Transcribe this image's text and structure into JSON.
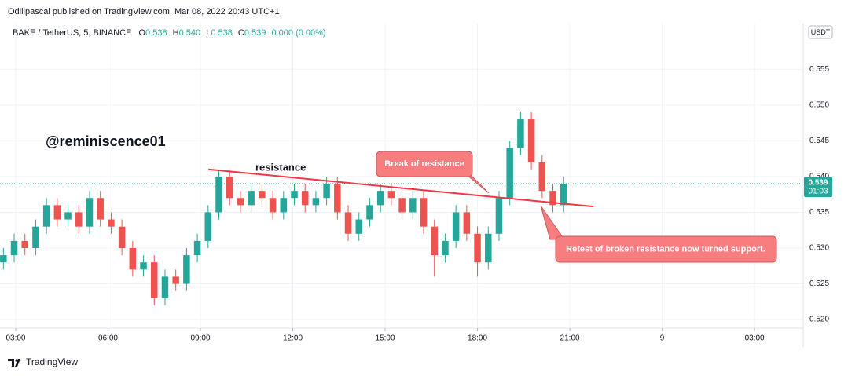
{
  "header": {
    "published": "Odilipascal published on TradingView.com, Mar 08, 2022 20:43 UTC+1",
    "symbol": "BAKE / TetherUS, 5, BINANCE",
    "ohlc": [
      {
        "label": "O",
        "value": "0.538"
      },
      {
        "label": "H",
        "value": "0.540"
      },
      {
        "label": "L",
        "value": "0.538"
      },
      {
        "label": "C",
        "value": "0.539"
      }
    ],
    "change": "0.000 (0.00%)",
    "currency": "USDT"
  },
  "footer": {
    "brand": "TradingView"
  },
  "chart_data": {
    "type": "candlestick",
    "up_color": "#26a69a",
    "down_color": "#ef5350",
    "grid": true,
    "grid_color": "#f0f3fa",
    "xlim": [
      2.49,
      28.58
    ],
    "xticks": [
      {
        "value": 3,
        "label": "03:00"
      },
      {
        "value": 6,
        "label": "06:00"
      },
      {
        "value": 9,
        "label": "09:00"
      },
      {
        "value": 12,
        "label": "12:00"
      },
      {
        "value": 15,
        "label": "15:00"
      },
      {
        "value": 18,
        "label": "18:00"
      },
      {
        "value": 21,
        "label": "21:00"
      },
      {
        "value": 24,
        "label": "9"
      },
      {
        "value": 27,
        "label": "03:00"
      }
    ],
    "ylim": [
      0.5188,
      0.5614
    ],
    "yticks": [
      {
        "value": 0.52,
        "label": "0.520"
      },
      0.525,
      {
        "value": 0.53,
        "label": "0.530"
      },
      0.535,
      {
        "value": 0.54,
        "label": "0.540"
      },
      0.545,
      {
        "value": 0.55,
        "label": "0.550"
      },
      0.555
    ],
    "x": [
      2.6,
      2.95,
      3.3,
      3.65,
      4.0,
      4.35,
      4.7,
      5.05,
      5.4,
      5.75,
      6.1,
      6.45,
      6.8,
      7.15,
      7.5,
      7.85,
      8.2,
      8.55,
      8.9,
      9.25,
      9.6,
      9.95,
      10.3,
      10.65,
      11.0,
      11.35,
      11.7,
      12.05,
      12.4,
      12.75,
      13.1,
      13.45,
      13.8,
      14.15,
      14.5,
      14.85,
      15.2,
      15.55,
      15.9,
      16.25,
      16.6,
      16.95,
      17.3,
      17.65,
      18.0,
      18.35,
      18.7,
      19.05,
      19.4,
      19.75,
      20.1,
      20.45,
      20.8
    ],
    "ohlc": [
      [
        0.528,
        0.53,
        0.527,
        0.529
      ],
      [
        0.529,
        0.532,
        0.528,
        0.531
      ],
      [
        0.531,
        0.532,
        0.529,
        0.53
      ],
      [
        0.53,
        0.534,
        0.529,
        0.533
      ],
      [
        0.533,
        0.537,
        0.532,
        0.536
      ],
      [
        0.536,
        0.537,
        0.533,
        0.534
      ],
      [
        0.534,
        0.536,
        0.533,
        0.535
      ],
      [
        0.535,
        0.536,
        0.532,
        0.533
      ],
      [
        0.533,
        0.538,
        0.532,
        0.537
      ],
      [
        0.537,
        0.538,
        0.533,
        0.534
      ],
      [
        0.534,
        0.535,
        0.532,
        0.533
      ],
      [
        0.533,
        0.534,
        0.529,
        0.53
      ],
      [
        0.53,
        0.531,
        0.526,
        0.527
      ],
      [
        0.527,
        0.529,
        0.526,
        0.528
      ],
      [
        0.528,
        0.529,
        0.522,
        0.523
      ],
      [
        0.523,
        0.527,
        0.522,
        0.526
      ],
      [
        0.526,
        0.527,
        0.524,
        0.525
      ],
      [
        0.525,
        0.53,
        0.524,
        0.529
      ],
      [
        0.529,
        0.532,
        0.528,
        0.531
      ],
      [
        0.531,
        0.536,
        0.53,
        0.535
      ],
      [
        0.535,
        0.541,
        0.534,
        0.54
      ],
      [
        0.54,
        0.541,
        0.536,
        0.537
      ],
      [
        0.537,
        0.538,
        0.535,
        0.536
      ],
      [
        0.536,
        0.539,
        0.535,
        0.538
      ],
      [
        0.538,
        0.539,
        0.536,
        0.537
      ],
      [
        0.537,
        0.538,
        0.534,
        0.535
      ],
      [
        0.535,
        0.538,
        0.534,
        0.537
      ],
      [
        0.537,
        0.539,
        0.536,
        0.538
      ],
      [
        0.538,
        0.539,
        0.535,
        0.536
      ],
      [
        0.536,
        0.538,
        0.535,
        0.537
      ],
      [
        0.537,
        0.54,
        0.536,
        0.539
      ],
      [
        0.539,
        0.54,
        0.534,
        0.535
      ],
      [
        0.535,
        0.536,
        0.531,
        0.532
      ],
      [
        0.532,
        0.535,
        0.531,
        0.534
      ],
      [
        0.534,
        0.537,
        0.533,
        0.536
      ],
      [
        0.536,
        0.539,
        0.535,
        0.538
      ],
      [
        0.538,
        0.539,
        0.536,
        0.537
      ],
      [
        0.537,
        0.538,
        0.534,
        0.535
      ],
      [
        0.535,
        0.538,
        0.534,
        0.537
      ],
      [
        0.537,
        0.538,
        0.532,
        0.533
      ],
      [
        0.533,
        0.534,
        0.526,
        0.529
      ],
      [
        0.529,
        0.532,
        0.528,
        0.531
      ],
      [
        0.531,
        0.536,
        0.53,
        0.535
      ],
      [
        0.535,
        0.536,
        0.531,
        0.532
      ],
      [
        0.532,
        0.533,
        0.526,
        0.528
      ],
      [
        0.528,
        0.533,
        0.527,
        0.532
      ],
      [
        0.532,
        0.538,
        0.531,
        0.537
      ],
      [
        0.537,
        0.545,
        0.536,
        0.544
      ],
      [
        0.544,
        0.549,
        0.543,
        0.548
      ],
      [
        0.548,
        0.549,
        0.541,
        0.542
      ],
      [
        0.542,
        0.543,
        0.537,
        0.538
      ],
      [
        0.538,
        0.539,
        0.535,
        0.536
      ],
      [
        0.536,
        0.54,
        0.535,
        0.539
      ]
    ],
    "last_price": {
      "value": 0.539,
      "countdown": "01:03",
      "color": "#26a69a"
    },
    "trendline": {
      "x": [
        9.26,
        21.77
      ],
      "y": [
        0.541,
        0.5358
      ],
      "color": "#f23645"
    },
    "annotations": {
      "watermark": "@reminiscence01",
      "resistance": "resistance",
      "break": "Break of resistance",
      "retest": "Retest of broken resistance now turned support."
    }
  }
}
